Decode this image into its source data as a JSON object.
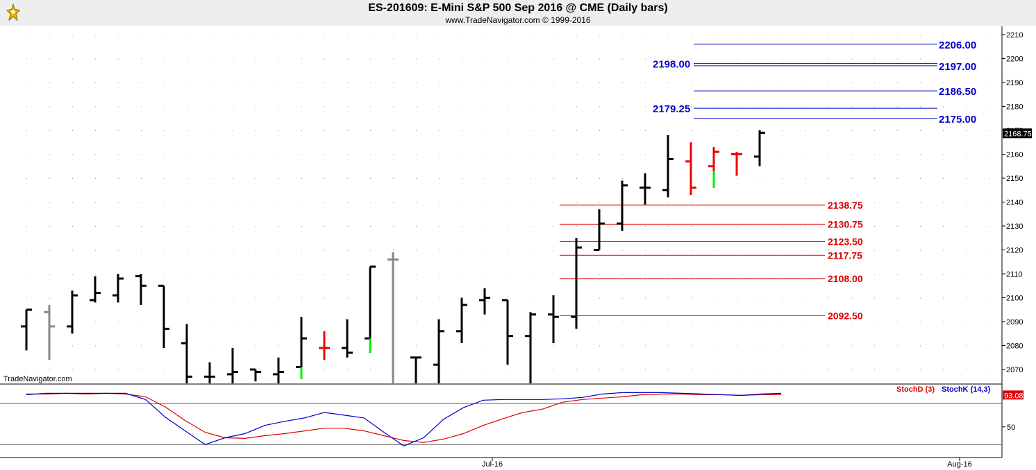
{
  "header": {
    "title": "ES-201609:  E-Mini S&P 500 Sep 2016 @ CME  (Daily bars)",
    "subtitle": "www.TradeNavigator.com © 1999-2016"
  },
  "watermark": "TradeNavigator.com",
  "chart_data": [
    {
      "type": "ohlc",
      "ylim": [
        2064,
        2213
      ],
      "yticks": [
        2070,
        2080,
        2090,
        2100,
        2110,
        2120,
        2130,
        2140,
        2150,
        2160,
        2170,
        2180,
        2190,
        2200,
        2210
      ],
      "last_price": "2168.75",
      "grid": true,
      "bar_colors": {
        "up": "#000000",
        "down": "#ee0000",
        "neutral": "#888888",
        "highlight": "#00ee00"
      },
      "bars": [
        {
          "o": 2088,
          "h": 2095,
          "l": 2078,
          "c": 2095,
          "color": "up"
        },
        {
          "o": 2094,
          "h": 2097,
          "l": 2074,
          "c": 2088,
          "color": "neutral"
        },
        {
          "o": 2088,
          "h": 2103,
          "l": 2085,
          "c": 2101,
          "color": "up"
        },
        {
          "o": 2099,
          "h": 2109,
          "l": 2098,
          "c": 2102,
          "color": "up"
        },
        {
          "o": 2101,
          "h": 2110,
          "l": 2098,
          "c": 2108,
          "color": "up"
        },
        {
          "o": 2109,
          "h": 2110,
          "l": 2097,
          "c": 2105,
          "color": "up"
        },
        {
          "o": 2105,
          "h": 2105,
          "l": 2079,
          "c": 2087,
          "color": "up"
        },
        {
          "o": 2081,
          "h": 2089,
          "l": 2062,
          "c": 2067,
          "color": "up"
        },
        {
          "o": 2067,
          "h": 2073,
          "l": 2062,
          "c": 2067,
          "color": "up"
        },
        {
          "o": 2068,
          "h": 2079,
          "l": 2062,
          "c": 2069,
          "color": "up"
        },
        {
          "o": 2070,
          "h": 2070,
          "l": 2065,
          "c": 2069,
          "color": "up"
        },
        {
          "o": 2068,
          "h": 2075,
          "l": 2062,
          "c": 2069,
          "color": "up"
        },
        {
          "o": 2071,
          "h": 2092,
          "l": 2066,
          "c": 2083,
          "color": "up",
          "low_highlight": 2071
        },
        {
          "o": 2079,
          "h": 2086,
          "l": 2074,
          "c": 2079,
          "color": "down"
        },
        {
          "o": 2079,
          "h": 2091,
          "l": 2075,
          "c": 2077,
          "color": "up"
        },
        {
          "o": 2083,
          "h": 2113,
          "l": 2077,
          "c": 2113,
          "color": "up",
          "low_highlight": 2083
        },
        {
          "o": 2116,
          "h": 2119,
          "l": 2062,
          "c": 2116,
          "color": "neutral"
        },
        {
          "o": 2075,
          "h": 2075,
          "l": 2062,
          "c": 2075,
          "color": "up"
        },
        {
          "o": 2072,
          "h": 2091,
          "l": 2062,
          "c": 2086,
          "color": "up"
        },
        {
          "o": 2086,
          "h": 2100,
          "l": 2081,
          "c": 2097,
          "color": "up"
        },
        {
          "o": 2099,
          "h": 2104,
          "l": 2093,
          "c": 2100,
          "color": "up"
        },
        {
          "o": 2099,
          "h": 2099,
          "l": 2072,
          "c": 2084,
          "color": "up",
          "high_highlight": 2099
        },
        {
          "o": 2084,
          "h": 2094,
          "l": 2062,
          "c": 2093,
          "color": "up"
        },
        {
          "o": 2093,
          "h": 2101,
          "l": 2081,
          "c": 2092,
          "color": "up"
        },
        {
          "o": 2092,
          "h": 2125,
          "l": 2087,
          "c": 2121,
          "color": "up"
        },
        {
          "o": 2120,
          "h": 2137,
          "l": 2120,
          "c": 2131,
          "color": "up"
        },
        {
          "o": 2131,
          "h": 2149,
          "l": 2128,
          "c": 2147,
          "color": "up"
        },
        {
          "o": 2146,
          "h": 2152,
          "l": 2139,
          "c": 2146,
          "color": "up"
        },
        {
          "o": 2145,
          "h": 2168,
          "l": 2142,
          "c": 2158,
          "color": "up"
        },
        {
          "o": 2157,
          "h": 2165,
          "l": 2143,
          "c": 2146,
          "color": "down"
        },
        {
          "o": 2155,
          "h": 2163,
          "l": 2146,
          "c": 2161,
          "color": "down",
          "low_highlight": 2153
        },
        {
          "o": 2160,
          "h": 2161,
          "l": 2151,
          "c": 2160,
          "color": "down"
        },
        {
          "o": 2159,
          "h": 2170,
          "l": 2155,
          "c": 2169,
          "color": "up"
        }
      ],
      "resistance_levels": [
        {
          "value": 2206.0,
          "label": "2206.00"
        },
        {
          "value": 2198.0,
          "label": "2198.00"
        },
        {
          "value": 2197.0,
          "label": "2197.00"
        },
        {
          "value": 2186.5,
          "label": "2186.50"
        },
        {
          "value": 2179.25,
          "label": "2179.25"
        },
        {
          "value": 2175.0,
          "label": "2175.00"
        }
      ],
      "support_levels": [
        {
          "value": 2138.75,
          "label": "2138.75"
        },
        {
          "value": 2130.75,
          "label": "2130.75"
        },
        {
          "value": 2123.5,
          "label": "2123.50"
        },
        {
          "value": 2117.75,
          "label": "2117.75"
        },
        {
          "value": 2108.0,
          "label": "2108.00"
        },
        {
          "value": 2092.5,
          "label": "2092.50"
        }
      ],
      "level_colors": {
        "resistance": "#0000cc",
        "support": "#dd0000"
      }
    },
    {
      "type": "line",
      "ylim": [
        0,
        100
      ],
      "yticks": [
        50
      ],
      "reference_lines": [
        80,
        20
      ],
      "last_value": "93.08",
      "series": [
        {
          "name": "StochD (3)",
          "color": "#dd0000",
          "values": [
            94,
            94,
            95,
            94,
            95,
            94,
            90,
            75,
            55,
            38,
            30,
            29,
            33,
            36,
            40,
            44,
            44,
            40,
            33,
            26,
            23,
            28,
            36,
            48,
            58,
            67,
            72,
            82,
            86,
            88,
            90,
            93,
            94,
            94,
            93,
            93,
            92,
            93,
            93
          ]
        },
        {
          "name": "StochK (14,3)",
          "color": "#0000cc",
          "values": [
            93,
            95,
            95,
            95,
            95,
            95,
            86,
            60,
            40,
            20,
            30,
            36,
            48,
            54,
            59,
            67,
            63,
            59,
            38,
            18,
            30,
            57,
            74,
            85,
            86,
            86,
            86,
            87,
            89,
            94,
            96,
            96,
            96,
            95,
            94,
            93,
            92,
            94,
            95
          ]
        }
      ]
    }
  ],
  "xaxis": {
    "labels": [
      "Jul-16",
      "Aug-16"
    ]
  }
}
